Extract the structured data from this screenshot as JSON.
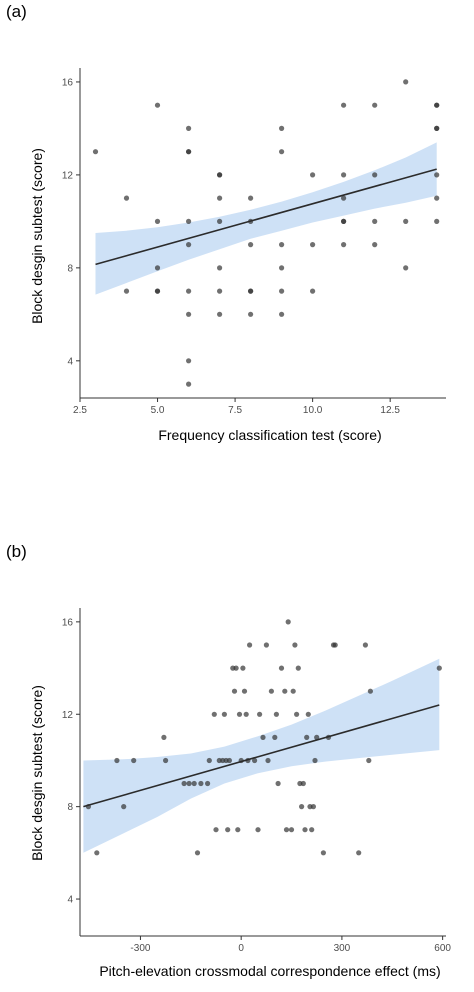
{
  "chart_data": [
    {
      "type": "scatter",
      "panel_label": "(a)",
      "xlabel": "Frequency classification test (score)",
      "ylabel": "Block desgin subtest (score)",
      "xlim": [
        2.5,
        14.3
      ],
      "ylim": [
        2.4,
        16.6
      ],
      "xticks": [
        2.5,
        5.0,
        7.5,
        10.0,
        12.5
      ],
      "xtick_labels": [
        "2.5",
        "5.0",
        "7.5",
        "10.0",
        "12.5"
      ],
      "yticks": [
        4,
        8,
        12,
        16
      ],
      "ytick_labels": [
        "4",
        "8",
        "12",
        "16"
      ],
      "grid": false,
      "colors": {
        "points": "#333333",
        "fit_line": "#2b2b2b",
        "confidence_band": "#c6dcf5",
        "axis": "#333333"
      },
      "points": [
        [
          3,
          13
        ],
        [
          4,
          11
        ],
        [
          4,
          7
        ],
        [
          5,
          15
        ],
        [
          5,
          10
        ],
        [
          5,
          8
        ],
        [
          5,
          7
        ],
        [
          5,
          7
        ],
        [
          6,
          14
        ],
        [
          6,
          13
        ],
        [
          6,
          13
        ],
        [
          6,
          10
        ],
        [
          6,
          9
        ],
        [
          6,
          7
        ],
        [
          6,
          6
        ],
        [
          6,
          4
        ],
        [
          6,
          3
        ],
        [
          7,
          12
        ],
        [
          7,
          12
        ],
        [
          7,
          11
        ],
        [
          7,
          10
        ],
        [
          7,
          8
        ],
        [
          7,
          7
        ],
        [
          7,
          6
        ],
        [
          8,
          11
        ],
        [
          8,
          10
        ],
        [
          8,
          9
        ],
        [
          8,
          7
        ],
        [
          8,
          7
        ],
        [
          8,
          6
        ],
        [
          9,
          14
        ],
        [
          9,
          13
        ],
        [
          9,
          9
        ],
        [
          9,
          8
        ],
        [
          9,
          7
        ],
        [
          9,
          6
        ],
        [
          10,
          12
        ],
        [
          10,
          9
        ],
        [
          10,
          7
        ],
        [
          11,
          15
        ],
        [
          11,
          12
        ],
        [
          11,
          11
        ],
        [
          11,
          10
        ],
        [
          11,
          10
        ],
        [
          11,
          9
        ],
        [
          12,
          15
        ],
        [
          12,
          12
        ],
        [
          12,
          10
        ],
        [
          12,
          9
        ],
        [
          13,
          16
        ],
        [
          13,
          10
        ],
        [
          13,
          8
        ],
        [
          14,
          15
        ],
        [
          14,
          15
        ],
        [
          14,
          14
        ],
        [
          14,
          14
        ],
        [
          14,
          12
        ],
        [
          14,
          11
        ],
        [
          14,
          10
        ]
      ],
      "fit_line": {
        "x": [
          3,
          14
        ],
        "y": [
          8.15,
          12.25
        ]
      },
      "confidence_band": {
        "x": [
          3,
          4,
          5,
          6,
          7,
          8,
          9,
          10,
          11,
          12,
          13,
          14
        ],
        "upper": [
          9.5,
          9.6,
          9.75,
          9.95,
          10.2,
          10.5,
          10.85,
          11.25,
          11.7,
          12.2,
          12.75,
          13.4
        ],
        "lower": [
          6.85,
          7.35,
          7.85,
          8.35,
          8.8,
          9.25,
          9.6,
          9.95,
          10.25,
          10.55,
          10.8,
          11.1
        ]
      }
    },
    {
      "type": "scatter",
      "panel_label": "(b)",
      "xlabel": "Pitch-elevation crossmodal correspondence effect (ms)",
      "ylabel": "Block desgin subtest (score)",
      "xlim": [
        -480,
        610
      ],
      "ylim": [
        2.4,
        16.6
      ],
      "xticks": [
        -300,
        0,
        300,
        600
      ],
      "xtick_labels": [
        "-300",
        "0",
        "300",
        "600"
      ],
      "yticks": [
        4,
        8,
        12,
        16
      ],
      "ytick_labels": [
        "4",
        "8",
        "12",
        "16"
      ],
      "grid": false,
      "colors": {
        "points": "#333333",
        "fit_line": "#2b2b2b",
        "confidence_band": "#c6dcf5",
        "axis": "#333333"
      },
      "points": [
        [
          -455,
          8
        ],
        [
          -430,
          6
        ],
        [
          -370,
          10
        ],
        [
          -350,
          8
        ],
        [
          -320,
          10
        ],
        [
          -230,
          11
        ],
        [
          -225,
          10
        ],
        [
          -170,
          9
        ],
        [
          -155,
          9
        ],
        [
          -140,
          9
        ],
        [
          -130,
          6
        ],
        [
          -120,
          9
        ],
        [
          -100,
          9
        ],
        [
          -95,
          10
        ],
        [
          -80,
          12
        ],
        [
          -75,
          7
        ],
        [
          -65,
          10
        ],
        [
          -55,
          10
        ],
        [
          -50,
          12
        ],
        [
          -45,
          10
        ],
        [
          -40,
          7
        ],
        [
          -35,
          10
        ],
        [
          -25,
          14
        ],
        [
          -20,
          13
        ],
        [
          -15,
          14
        ],
        [
          -10,
          7
        ],
        [
          -5,
          12
        ],
        [
          0,
          10
        ],
        [
          5,
          14
        ],
        [
          10,
          13
        ],
        [
          15,
          12
        ],
        [
          20,
          10
        ],
        [
          25,
          15
        ],
        [
          40,
          10
        ],
        [
          50,
          7
        ],
        [
          55,
          12
        ],
        [
          65,
          11
        ],
        [
          75,
          15
        ],
        [
          80,
          10
        ],
        [
          90,
          13
        ],
        [
          100,
          11
        ],
        [
          105,
          12
        ],
        [
          110,
          9
        ],
        [
          120,
          14
        ],
        [
          130,
          13
        ],
        [
          135,
          7
        ],
        [
          140,
          16
        ],
        [
          150,
          7
        ],
        [
          155,
          13
        ],
        [
          160,
          15
        ],
        [
          165,
          12
        ],
        [
          170,
          14
        ],
        [
          175,
          9
        ],
        [
          180,
          8
        ],
        [
          185,
          9
        ],
        [
          190,
          7
        ],
        [
          195,
          11
        ],
        [
          200,
          12
        ],
        [
          205,
          8
        ],
        [
          210,
          7
        ],
        [
          215,
          8
        ],
        [
          220,
          10
        ],
        [
          225,
          11
        ],
        [
          245,
          6
        ],
        [
          260,
          11
        ],
        [
          275,
          15
        ],
        [
          280,
          15
        ],
        [
          350,
          6
        ],
        [
          370,
          15
        ],
        [
          380,
          10
        ],
        [
          385,
          13
        ],
        [
          590,
          14
        ]
      ],
      "fit_line": {
        "x": [
          -470,
          590
        ],
        "y": [
          8.0,
          12.4
        ]
      },
      "confidence_band": {
        "x": [
          -470,
          -350,
          -250,
          -150,
          -50,
          50,
          150,
          250,
          350,
          450,
          590
        ],
        "upper": [
          10.0,
          10.05,
          10.15,
          10.3,
          10.6,
          11.05,
          11.55,
          12.15,
          12.8,
          13.45,
          14.4
        ],
        "lower": [
          6.0,
          6.85,
          7.55,
          8.35,
          9.0,
          9.45,
          9.75,
          9.95,
          10.1,
          10.25,
          10.45
        ]
      }
    }
  ]
}
